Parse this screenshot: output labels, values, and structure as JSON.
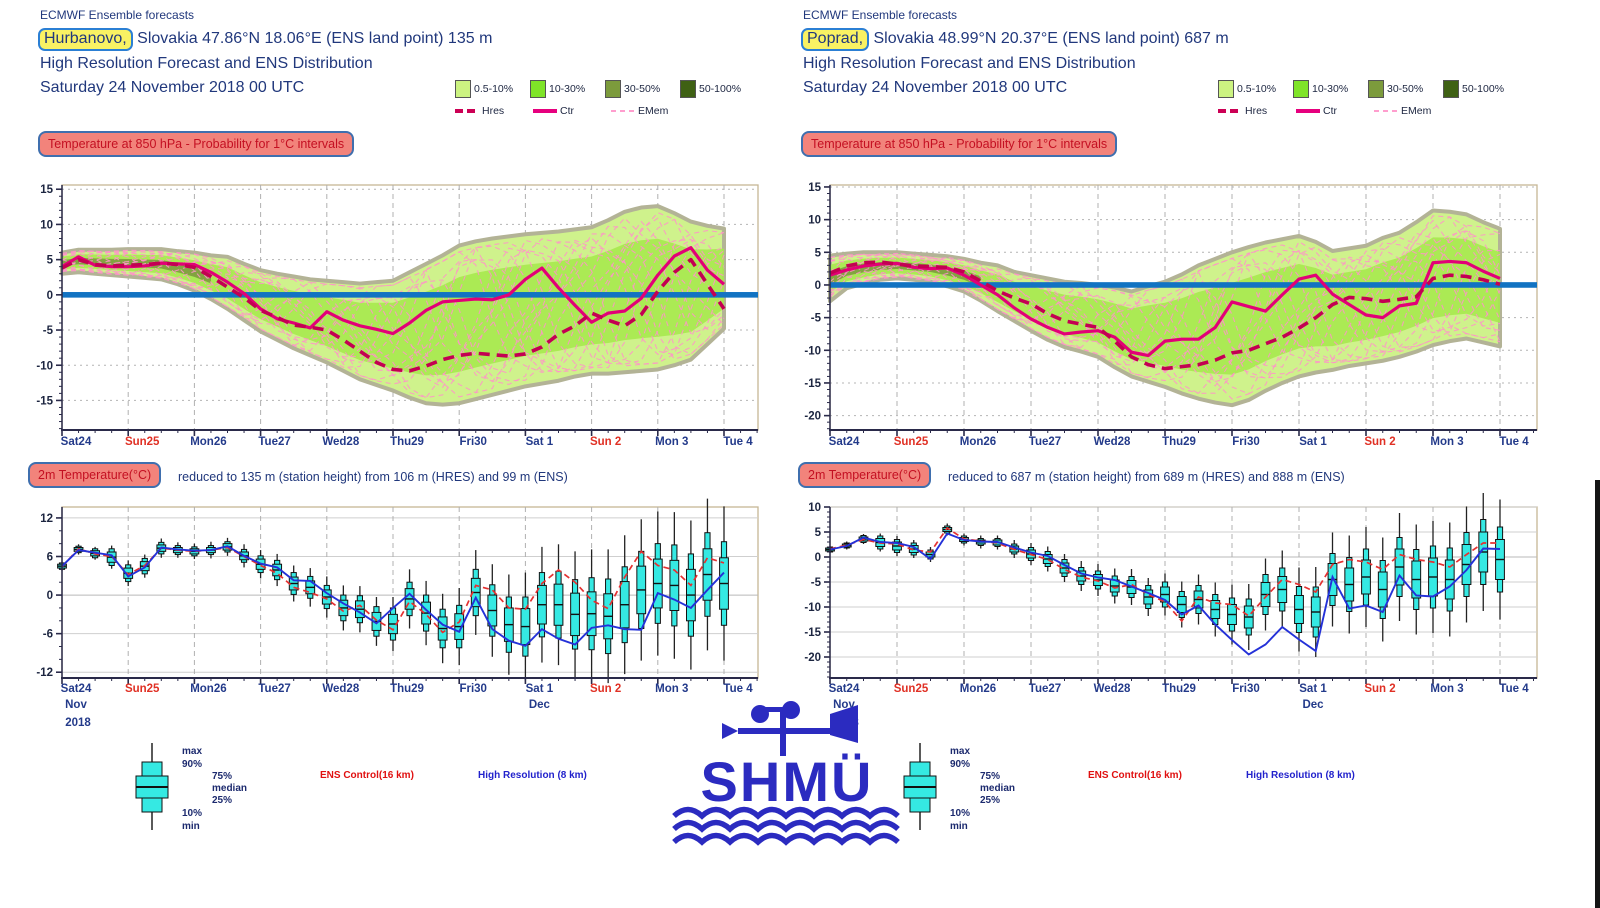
{
  "panels": [
    {
      "header": {
        "product": "ECMWF Ensemble forecasts",
        "station": "Hurbanovo,",
        "location": "Slovakia 47.86°N 18.06°E (ENS land point) 135 m",
        "line3": "High Resolution Forecast and ENS Distribution",
        "line4": "Saturday 24 November 2018 00 UTC"
      },
      "badge850": "Temperature at 850 hPa - Probability for 1°C intervals",
      "badge2m": "2m Temperature(°C)",
      "subtitle2m": "reduced to 135 m (station height) from 106 m (HRES) and 99 m (ENS)"
    },
    {
      "header": {
        "product": "ECMWF Ensemble forecasts",
        "station": "Poprad,",
        "location": "Slovakia 48.99°N 20.37°E (ENS land point) 687 m",
        "line3": "High Resolution Forecast and ENS Distribution",
        "line4": "Saturday 24 November 2018 00 UTC"
      },
      "badge850": "Temperature at 850 hPa - Probability for 1°C intervals",
      "badge2m": "2m Temperature(°C)",
      "subtitle2m": "reduced to 687 m (station height) from 689 m (HRES) and 888 m (ENS)"
    }
  ],
  "legend": {
    "bands": [
      {
        "label": "0.5-10%",
        "color": "#ccf381"
      },
      {
        "label": "10-30%",
        "color": "#7fe428"
      },
      {
        "label": "30-50%",
        "color": "#7c9b3c"
      },
      {
        "label": "50-100%",
        "color": "#3f6114"
      }
    ],
    "lines": [
      {
        "label": "Hres"
      },
      {
        "label": "Ctr"
      },
      {
        "label": "EMem"
      }
    ]
  },
  "xaxis": {
    "labels": [
      {
        "t": "Sat24",
        "red": false
      },
      {
        "t": "Sun25",
        "red": true
      },
      {
        "t": "Mon26",
        "red": false
      },
      {
        "t": "Tue27",
        "red": false
      },
      {
        "t": "Wed28",
        "red": false
      },
      {
        "t": "Thu29",
        "red": false
      },
      {
        "t": "Fri30",
        "red": false
      },
      {
        "t": "Sat 1",
        "red": false
      },
      {
        "t": "Sun 2",
        "red": true
      },
      {
        "t": "Mon 3",
        "red": false
      },
      {
        "t": "Tue 4",
        "red": false
      }
    ],
    "month_start": "Nov",
    "year": "2018",
    "month_mid": "Dec"
  },
  "bottom": {
    "stats": [
      "max",
      "90%",
      "75%",
      "median",
      "25%",
      "10%",
      "min"
    ],
    "ens_control": "ENS Control(16 km)",
    "high_res": "High Resolution (8 km)"
  },
  "logo": {
    "text": "SHMÜ"
  },
  "colors": {
    "zero_line": "#1273c2",
    "ctr": "#e20077",
    "hres": "#c30052",
    "emem": "#ff93c9",
    "band_outer": "#cff28c",
    "band_mid": "#a6e94e",
    "band_core": "#7d9b3e",
    "box_fill": "#35e9e3",
    "box_edge": "#111111",
    "blue_line": "#2431d8",
    "red_line": "#e43131",
    "navy_text": "#21387c",
    "red_label": "#e03024"
  },
  "box_spread": {
    "iqr": [
      0.3,
      0.3,
      0.4,
      0.8,
      0.8,
      0.7,
      0.5,
      0.4,
      0.4,
      0.4,
      0.5,
      0.6,
      0.8,
      0.9,
      1.0,
      1.0,
      1.1,
      1.2,
      1.3,
      1.4,
      1.5,
      1.6,
      1.7,
      1.8,
      2.0,
      2.2,
      2.4,
      2.6,
      2.8,
      3.0,
      3.2,
      3.3,
      3.4,
      3.5,
      3.6,
      3.7,
      3.8,
      3.9,
      4.0,
      4.0,
      4.0
    ],
    "dec": [
      0.5,
      0.5,
      0.7,
      1.3,
      1.3,
      1.2,
      0.9,
      0.7,
      0.7,
      0.7,
      0.8,
      1.0,
      1.3,
      1.5,
      1.7,
      1.7,
      1.8,
      2.0,
      2.1,
      2.3,
      2.5,
      2.6,
      2.8,
      3.0,
      3.3,
      3.6,
      4.0,
      4.3,
      4.6,
      5.0,
      5.2,
      5.4,
      5.6,
      5.8,
      5.9,
      6.0,
      6.2,
      6.3,
      6.4,
      6.5,
      6.5
    ],
    "rng": [
      0.7,
      0.8,
      1.0,
      1.8,
      2.0,
      1.8,
      1.5,
      1.2,
      1.2,
      1.3,
      1.4,
      1.8,
      2.2,
      2.5,
      2.8,
      3.0,
      3.2,
      3.5,
      3.6,
      3.8,
      4.2,
      4.6,
      5.0,
      5.4,
      6.0,
      6.6,
      7.2,
      7.8,
      8.4,
      9.0,
      9.4,
      9.8,
      10.0,
      10.4,
      10.8,
      11.0,
      11.2,
      11.4,
      11.6,
      11.8,
      12.0
    ]
  },
  "chart_data": [
    {
      "id": "hurbanovo-850",
      "type": "area",
      "station": "Hurbanovo",
      "title": "Temperature at 850 hPa - Probability for 1°C intervals",
      "hours_step": 6,
      "hours_max": 240,
      "ylim": [
        -19.2,
        15.6
      ],
      "yticks": [
        15,
        10,
        5,
        0,
        -5,
        -10,
        -15
      ],
      "yminor": 1,
      "members": 16,
      "band_min": [
        3.0,
        3.2,
        3.0,
        2.8,
        2.6,
        2.4,
        2.2,
        1.5,
        0.6,
        -0.6,
        -2.0,
        -3.6,
        -5.2,
        -6.4,
        -7.6,
        -8.6,
        -9.6,
        -10.8,
        -12.0,
        -12.8,
        -13.6,
        -14.6,
        -15.4,
        -15.6,
        -15.4,
        -14.8,
        -14.2,
        -13.6,
        -13.0,
        -12.6,
        -12.2,
        -11.6,
        -11.2,
        -11.2,
        -11.0,
        -10.8,
        -10.6,
        -10.0,
        -9.2,
        -7.0,
        -4.8
      ],
      "band_max": [
        6.0,
        6.4,
        6.4,
        6.4,
        6.5,
        6.5,
        6.5,
        6.2,
        6.0,
        5.6,
        5.4,
        4.4,
        3.5,
        3.0,
        2.6,
        2.2,
        2.0,
        1.8,
        1.6,
        1.8,
        2.0,
        3.2,
        4.4,
        5.6,
        7.0,
        7.6,
        8.0,
        8.3,
        8.6,
        8.8,
        9.0,
        9.3,
        9.6,
        10.6,
        11.8,
        12.4,
        12.6,
        11.6,
        10.4,
        9.8,
        9.4
      ],
      "ctr": [
        4.0,
        5.4,
        4.2,
        4.0,
        4.0,
        4.1,
        4.5,
        4.4,
        4.3,
        3.2,
        1.8,
        0.2,
        -2.0,
        -3.4,
        -4.0,
        -4.7,
        -2.4,
        -3.6,
        -4.4,
        -4.9,
        -5.5,
        -4.0,
        -2.2,
        -1.0,
        -0.8,
        -0.6,
        -0.7,
        0.0,
        2.2,
        3.8,
        1.0,
        -1.5,
        -3.9,
        -2.6,
        -2.3,
        -0.5,
        2.8,
        5.5,
        6.7,
        3.5,
        1.5
      ],
      "hres": [
        3.8,
        5.0,
        4.3,
        4.1,
        4.2,
        4.3,
        4.5,
        4.3,
        3.9,
        2.6,
        1.1,
        -0.4,
        -2.2,
        -3.2,
        -4.3,
        -4.6,
        -5.0,
        -6.4,
        -8.0,
        -9.6,
        -10.6,
        -10.8,
        -10.1,
        -9.2,
        -8.6,
        -8.3,
        -8.5,
        -8.7,
        -8.4,
        -7.4,
        -5.6,
        -4.4,
        -2.6,
        -3.6,
        -4.4,
        -2.8,
        0.5,
        3.2,
        5.0,
        1.5,
        -2.0
      ]
    },
    {
      "id": "hurbanovo-2m",
      "type": "box",
      "station": "Hurbanovo",
      "title": "2m Temperature(°C)",
      "hours_step": 6,
      "hours_max": 240,
      "ylim": [
        -12.9,
        13.7
      ],
      "yticks": [
        12,
        6,
        0,
        -6,
        -12
      ],
      "yminor": 2,
      "box_med": [
        4.5,
        7.1,
        6.5,
        5.9,
        3.4,
        4.5,
        7.3,
        7.0,
        6.8,
        7.0,
        7.5,
        6.1,
        4.8,
        3.9,
        1.8,
        1.2,
        -0.3,
        -2.0,
        -2.2,
        -4.1,
        -4.5,
        -0.6,
        -2.8,
        -5.2,
        -4.9,
        0.4,
        -2.4,
        -4.6,
        -4.9,
        -1.5,
        -1.5,
        -3.0,
        -2.9,
        -3.3,
        -1.5,
        0.8,
        1.8,
        1.5,
        0.0,
        3.2,
        1.8
      ],
      "hres": [
        4.5,
        7.0,
        6.6,
        6.2,
        2.9,
        4.3,
        7.4,
        7.1,
        6.9,
        7.0,
        7.6,
        6.1,
        4.9,
        4.3,
        2.3,
        2.2,
        0.3,
        -1.3,
        -2.7,
        -4.4,
        -2.0,
        0.2,
        -2.3,
        -4.6,
        -5.7,
        -0.4,
        -5.3,
        -7.1,
        -7.9,
        -5.3,
        -6.8,
        -7.7,
        -5.1,
        -4.7,
        -5.3,
        -5.4,
        0.3,
        -0.7,
        -2.0,
        0.8,
        3.5
      ],
      "ctrl": [
        4.4,
        7.2,
        6.4,
        6.0,
        3.2,
        4.6,
        7.3,
        7.0,
        6.8,
        7.0,
        7.4,
        6.0,
        4.6,
        3.4,
        1.2,
        0.4,
        -0.6,
        -2.5,
        -1.6,
        -3.9,
        -5.4,
        -1.0,
        -3.0,
        -5.8,
        -4.2,
        1.5,
        0.8,
        -2.0,
        -2.2,
        1.8,
        3.9,
        2.0,
        -0.8,
        -2.1,
        2.8,
        6.8,
        4.6,
        3.9,
        1.5,
        5.8,
        5.0
      ]
    },
    {
      "id": "poprad-850",
      "type": "area",
      "station": "Poprad",
      "title": "Temperature at 850 hPa - Probability for 1°C intervals",
      "hours_step": 6,
      "hours_max": 240,
      "ylim": [
        -22.2,
        15.3
      ],
      "yticks": [
        15,
        10,
        5,
        0,
        -5,
        -10,
        -15,
        -20
      ],
      "yminor": 1,
      "members": 16,
      "band_min": [
        -2.5,
        -0.5,
        0.2,
        0.8,
        1.0,
        0.8,
        0.5,
        -0.2,
        -1.0,
        -2.4,
        -4.0,
        -5.5,
        -7.0,
        -8.4,
        -9.5,
        -10.2,
        -11.0,
        -12.6,
        -14.0,
        -14.8,
        -15.6,
        -16.6,
        -17.4,
        -18.0,
        -18.4,
        -17.6,
        -16.2,
        -15.0,
        -14.0,
        -13.4,
        -13.0,
        -12.4,
        -12.0,
        -11.6,
        -11.0,
        -10.2,
        -9.2,
        -8.6,
        -8.2,
        -8.8,
        -9.4
      ],
      "band_max": [
        4.5,
        4.8,
        5.0,
        5.0,
        5.0,
        4.8,
        4.6,
        4.4,
        4.0,
        3.4,
        3.0,
        2.0,
        1.5,
        1.0,
        0.5,
        0.3,
        0.0,
        -0.4,
        -1.0,
        -0.2,
        0.5,
        1.6,
        3.0,
        4.0,
        5.0,
        5.8,
        6.5,
        7.0,
        7.5,
        6.6,
        5.2,
        5.6,
        6.0,
        7.2,
        8.0,
        9.6,
        11.4,
        11.2,
        10.8,
        9.6,
        8.6
      ],
      "ctr": [
        1.5,
        2.3,
        2.9,
        3.2,
        3.3,
        2.7,
        2.5,
        2.6,
        1.5,
        0.0,
        -1.5,
        -3.5,
        -5.2,
        -6.5,
        -7.5,
        -7.2,
        -7.0,
        -8.0,
        -10.3,
        -10.8,
        -8.6,
        -8.3,
        -8.3,
        -6.5,
        -2.6,
        -3.3,
        -4.0,
        -1.5,
        0.9,
        1.5,
        -1.4,
        -3.0,
        -4.6,
        -5.0,
        -3.2,
        -2.8,
        3.4,
        3.6,
        3.4,
        2.1,
        1.0
      ],
      "hres": [
        1.8,
        2.9,
        3.4,
        3.5,
        3.2,
        2.9,
        2.8,
        2.7,
        2.0,
        0.6,
        -0.9,
        -2.0,
        -2.9,
        -4.4,
        -5.5,
        -6.0,
        -6.5,
        -8.6,
        -11.0,
        -12.2,
        -12.8,
        -12.5,
        -12.2,
        -11.5,
        -10.4,
        -10.0,
        -9.0,
        -8.0,
        -6.6,
        -5.0,
        -3.0,
        -1.9,
        -2.1,
        -2.5,
        -2.2,
        -1.8,
        1.0,
        1.5,
        1.3,
        0.8,
        0.1
      ]
    },
    {
      "id": "poprad-2m",
      "type": "box",
      "station": "Poprad",
      "title": "2m Temperature(°C)",
      "hours_step": 6,
      "hours_max": 240,
      "ylim": [
        -24.2,
        10.0
      ],
      "yticks": [
        10,
        5,
        0,
        -5,
        -10,
        -15,
        -20
      ],
      "yminor": 1,
      "box_med": [
        1.5,
        2.3,
        3.6,
        2.9,
        2.2,
        1.6,
        0.5,
        5.5,
        3.5,
        3.0,
        2.9,
        1.6,
        0.6,
        -0.4,
        -2.2,
        -3.8,
        -4.6,
        -5.8,
        -6.0,
        -8.0,
        -7.5,
        -9.5,
        -8.5,
        -10.5,
        -11.5,
        -12.0,
        -7.5,
        -6.5,
        -10.5,
        -11.0,
        -4.5,
        -5.5,
        -4.0,
        -6.5,
        -2.0,
        -4.5,
        -4.0,
        -4.5,
        -1.5,
        1.0,
        -0.5
      ],
      "hres": [
        1.5,
        2.2,
        3.9,
        3.0,
        2.8,
        2.0,
        -0.4,
        4.7,
        3.4,
        3.1,
        3.0,
        1.9,
        0.9,
        0.2,
        -1.6,
        -3.3,
        -4.1,
        -4.6,
        -5.9,
        -7.2,
        -8.6,
        -11.5,
        -9.7,
        -13.5,
        -16.6,
        -19.5,
        -17.5,
        -14.0,
        -16.5,
        -18.8,
        -4.0,
        -10.3,
        -9.7,
        -11.0,
        -3.7,
        -7.7,
        -7.9,
        -5.9,
        -2.6,
        1.7,
        1.6
      ],
      "ctrl": [
        1.6,
        2.4,
        3.5,
        2.8,
        2.6,
        1.4,
        1.0,
        5.8,
        3.6,
        3.2,
        2.8,
        1.5,
        0.5,
        -0.5,
        -2.5,
        -4.0,
        -4.8,
        -6.2,
        -5.5,
        -7.5,
        -9.0,
        -12.8,
        -8.0,
        -9.2,
        -9.5,
        -11.8,
        -8.0,
        -4.5,
        -5.5,
        -7.0,
        -1.5,
        -0.5,
        -1.0,
        -2.5,
        0.5,
        -0.5,
        -1.0,
        -2.0,
        0.5,
        2.8,
        2.8
      ]
    }
  ]
}
